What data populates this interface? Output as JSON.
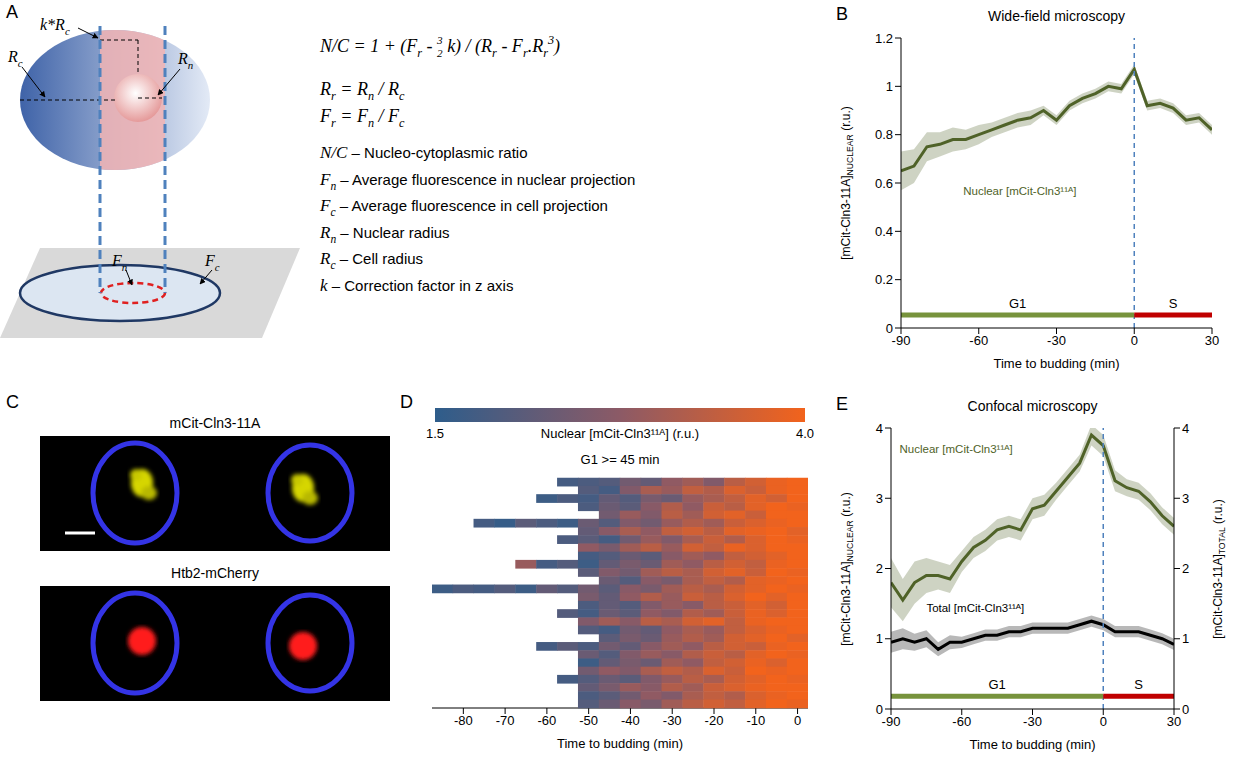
{
  "diagram": {
    "panel": "A",
    "labels": [
      [
        "k*R",
        {
          "sub": "c"
        }
      ],
      [
        "R",
        {
          "sub": "c"
        }
      ],
      [
        "R",
        {
          "sub": "n"
        }
      ],
      [
        "F",
        {
          "sub": "n"
        }
      ],
      [
        "F",
        {
          "sub": "c"
        }
      ]
    ],
    "formula": [
      [
        "N/C = 1 + (F",
        {
          "sub": "r"
        },
        " - ",
        {
          "frac": [
            "3",
            "2"
          ]
        },
        " k) / (R",
        {
          "sub": "r"
        },
        " - F",
        {
          "sub": "r"
        },
        ".R",
        {
          "sub": "r"
        },
        {
          "sup": "3"
        },
        ")"
      ],
      [
        "R",
        {
          "sub": "r"
        },
        " = R",
        {
          "sub": "n"
        },
        " / R",
        {
          "sub": "c"
        }
      ],
      [
        "F",
        {
          "sub": "r"
        },
        " = F",
        {
          "sub": "n"
        },
        " / F",
        {
          "sub": "c"
        }
      ]
    ],
    "definitions": [
      {
        "term": [
          "N/C"
        ],
        "text": "– Nucleo-cytoplasmic ratio"
      },
      {
        "term": [
          "F",
          {
            "sub": "n"
          }
        ],
        "text": "– Average fluorescence in nuclear projection"
      },
      {
        "term": [
          "F",
          {
            "sub": "c"
          }
        ],
        "text": "– Average fluorescence in cell projection"
      },
      {
        "term": [
          "R",
          {
            "sub": "n"
          }
        ],
        "text": "– Nuclear radius"
      },
      {
        "term": [
          "R",
          {
            "sub": "c"
          }
        ],
        "text": "– Cell radius"
      },
      {
        "term": [
          "k"
        ],
        "text": "– Correction factor in z axis"
      }
    ]
  },
  "images": {
    "panel": "C",
    "channels": [
      "mCit-Cln3-11A",
      "Htb2-mCherry"
    ]
  },
  "chart_data": [
    {
      "panel": "B",
      "type": "line",
      "title": "Wide-field microscopy",
      "xlabel": "Time to budding (min)",
      "ylabel": {
        "text": "[mCit-Cln3-11A]",
        "sub": "NUCLEAR",
        "suffix": " (r.u.)"
      },
      "x": [
        -90,
        -85,
        -80,
        -75,
        -70,
        -65,
        -60,
        -55,
        -50,
        -45,
        -40,
        -35,
        -30,
        -25,
        -20,
        -15,
        -10,
        -5,
        0,
        5,
        10,
        15,
        20,
        25,
        30
      ],
      "xlim": [
        -90,
        30
      ],
      "xticks": [
        -90,
        -60,
        -30,
        0,
        30
      ],
      "ylim": [
        0,
        1.2
      ],
      "yticks": [
        0,
        0.2,
        0.4,
        0.6,
        0.8,
        1,
        1.2
      ],
      "grid": false,
      "series": [
        {
          "name": "Nuclear [mCit-Cln3¹¹ᴬ]",
          "color": "#4f6228",
          "values": [
            0.65,
            0.67,
            0.75,
            0.76,
            0.78,
            0.78,
            0.8,
            0.82,
            0.84,
            0.86,
            0.87,
            0.9,
            0.86,
            0.92,
            0.95,
            0.97,
            1.0,
            0.99,
            1.07,
            0.92,
            0.93,
            0.91,
            0.86,
            0.87,
            0.82
          ],
          "error": [
            0.08,
            0.07,
            0.06,
            0.05,
            0.05,
            0.04,
            0.04,
            0.03,
            0.03,
            0.03,
            0.03,
            0.02,
            0.02,
            0.02,
            0.02,
            0.02,
            0.02,
            0.02,
            0.02,
            0.02,
            0.02,
            0.02,
            0.02,
            0.02,
            0.02
          ]
        }
      ],
      "vline": 0,
      "phases": [
        {
          "label": "G1",
          "start": -90,
          "end": 0,
          "color": "#77933c"
        },
        {
          "label": "S",
          "start": 0,
          "end": 30,
          "color": "#c00000"
        }
      ]
    },
    {
      "panel": "D",
      "type": "heatmap",
      "title": "G1 >= 45 min",
      "xlabel": "Time to budding (min)",
      "x": [
        -85,
        -80,
        -75,
        -70,
        -65,
        -60,
        -55,
        -50,
        -45,
        -40,
        -35,
        -30,
        -25,
        -20,
        -15,
        -10,
        -5,
        0
      ],
      "xlim": [
        -87.5,
        2.5
      ],
      "xticks": [
        -80,
        -70,
        -60,
        -50,
        -40,
        -30,
        -20,
        -10,
        0
      ],
      "tick_labels": "x",
      "colorbar": {
        "label": "Nuclear [mCit-Cln3¹¹ᴬ] (r.u.)",
        "range": [
          1.5,
          4
        ],
        "ticks": [
          1.5,
          {
            "value": 4,
            "label": "4.0"
          }
        ],
        "colors": [
          "#2e5d8b",
          "#8c5a66",
          "#f2631c"
        ]
      },
      "cells": [
        [
          null,
          null,
          null,
          null,
          null,
          null,
          1.8,
          1.9,
          2.0,
          2.4,
          2.2,
          2.8,
          3.0,
          2.6,
          3.3,
          3.6,
          3.9,
          4.0
        ],
        [
          null,
          null,
          null,
          null,
          null,
          null,
          null,
          2.0,
          1.8,
          2.6,
          3.1,
          2.9,
          3.4,
          3.2,
          3.7,
          3.5,
          3.9,
          4.0
        ],
        [
          null,
          null,
          null,
          null,
          null,
          1.7,
          1.9,
          1.8,
          2.2,
          2.0,
          2.5,
          2.3,
          2.9,
          3.1,
          3.4,
          3.8,
          3.6,
          4.0
        ],
        [
          null,
          null,
          null,
          null,
          null,
          null,
          null,
          1.9,
          2.3,
          2.1,
          2.7,
          3.2,
          2.8,
          3.5,
          3.3,
          3.8,
          4.0,
          3.9
        ],
        [
          null,
          null,
          null,
          null,
          null,
          null,
          null,
          null,
          2.4,
          2.9,
          2.6,
          3.3,
          3.0,
          3.6,
          3.8,
          3.5,
          4.0,
          4.0
        ],
        [
          null,
          null,
          1.8,
          1.6,
          2.1,
          1.9,
          1.7,
          2.3,
          2.0,
          2.6,
          2.4,
          2.9,
          3.2,
          3.0,
          3.5,
          3.7,
          3.9,
          4.0
        ],
        [
          null,
          null,
          null,
          null,
          null,
          null,
          null,
          2.2,
          2.7,
          3.1,
          2.8,
          3.4,
          3.6,
          3.3,
          3.8,
          3.9,
          4.0,
          3.8
        ],
        [
          null,
          null,
          null,
          null,
          null,
          null,
          1.9,
          2.1,
          1.8,
          2.4,
          2.9,
          2.6,
          3.1,
          3.5,
          3.2,
          3.7,
          4.0,
          3.9
        ],
        [
          null,
          null,
          null,
          null,
          null,
          null,
          null,
          2.8,
          2.5,
          3.0,
          3.3,
          2.9,
          3.6,
          3.4,
          3.9,
          3.7,
          4.0,
          4.0
        ],
        [
          null,
          null,
          null,
          null,
          null,
          null,
          null,
          1.8,
          2.0,
          2.3,
          2.1,
          2.7,
          3.0,
          2.8,
          3.4,
          3.6,
          3.8,
          4.0
        ],
        [
          null,
          null,
          null,
          null,
          2.9,
          1.8,
          2.0,
          1.7,
          2.2,
          2.5,
          2.3,
          3.0,
          2.8,
          3.3,
          3.6,
          3.4,
          3.9,
          4.0
        ],
        [
          null,
          null,
          null,
          null,
          null,
          null,
          null,
          2.1,
          2.6,
          2.4,
          3.0,
          3.3,
          3.1,
          3.6,
          3.8,
          3.5,
          4.0,
          3.9
        ],
        [
          null,
          null,
          null,
          null,
          null,
          null,
          null,
          null,
          2.3,
          2.0,
          2.7,
          2.5,
          3.1,
          3.4,
          3.2,
          3.8,
          3.9,
          4.0
        ],
        [
          1.7,
          1.9,
          1.8,
          2.0,
          1.7,
          2.2,
          2.0,
          2.4,
          2.1,
          2.7,
          2.5,
          3.0,
          3.3,
          3.1,
          3.6,
          3.8,
          4.0,
          3.9
        ],
        [
          null,
          null,
          null,
          null,
          null,
          null,
          null,
          2.5,
          2.2,
          2.8,
          3.2,
          2.9,
          3.5,
          3.3,
          3.7,
          4.0,
          3.8,
          4.0
        ],
        [
          null,
          null,
          null,
          null,
          null,
          null,
          null,
          1.9,
          2.2,
          2.0,
          2.6,
          2.9,
          2.7,
          3.3,
          3.5,
          3.8,
          3.6,
          4.0
        ],
        [
          null,
          null,
          null,
          null,
          null,
          null,
          2.0,
          1.8,
          2.3,
          2.1,
          2.8,
          2.6,
          3.2,
          3.0,
          3.5,
          3.9,
          3.7,
          4.0
        ],
        [
          null,
          null,
          null,
          null,
          null,
          null,
          null,
          2.6,
          3.0,
          2.7,
          3.3,
          3.1,
          3.6,
          3.8,
          3.4,
          3.9,
          4.0,
          4.0
        ],
        [
          null,
          null,
          null,
          null,
          null,
          null,
          null,
          2.0,
          1.8,
          2.4,
          2.2,
          2.8,
          3.1,
          2.9,
          3.4,
          3.7,
          3.9,
          4.0
        ],
        [
          null,
          null,
          null,
          null,
          null,
          null,
          null,
          null,
          2.1,
          2.5,
          2.3,
          2.9,
          3.2,
          3.0,
          3.6,
          3.8,
          4.0,
          3.8
        ],
        [
          null,
          null,
          null,
          null,
          null,
          1.8,
          2.1,
          1.9,
          2.4,
          2.2,
          2.7,
          3.0,
          2.8,
          3.3,
          3.6,
          3.5,
          3.9,
          4.0
        ],
        [
          null,
          null,
          null,
          null,
          null,
          null,
          null,
          2.3,
          2.0,
          2.6,
          2.9,
          2.7,
          3.2,
          3.5,
          3.3,
          3.8,
          4.0,
          3.9
        ],
        [
          null,
          null,
          null,
          null,
          null,
          null,
          null,
          1.7,
          2.2,
          2.5,
          2.3,
          3.0,
          2.8,
          3.4,
          3.6,
          3.9,
          3.7,
          4.0
        ],
        [
          null,
          null,
          null,
          null,
          null,
          null,
          null,
          2.4,
          2.8,
          2.6,
          3.1,
          3.4,
          3.2,
          3.7,
          3.5,
          4.0,
          3.9,
          4.0
        ],
        [
          null,
          null,
          null,
          null,
          null,
          null,
          1.8,
          2.0,
          2.3,
          2.1,
          2.6,
          2.9,
          3.3,
          3.1,
          3.6,
          3.8,
          4.0,
          3.9
        ],
        [
          null,
          null,
          null,
          null,
          null,
          null,
          null,
          2.2,
          2.5,
          2.9,
          2.7,
          3.2,
          3.0,
          3.5,
          3.7,
          3.9,
          4.0,
          4.0
        ],
        [
          null,
          null,
          null,
          null,
          null,
          null,
          null,
          1.9,
          2.1,
          2.4,
          2.8,
          2.6,
          3.1,
          3.4,
          3.2,
          3.7,
          3.9,
          4.0
        ],
        [
          null,
          null,
          null,
          null,
          null,
          null,
          null,
          2.0,
          2.3,
          2.7,
          2.5,
          3.0,
          3.3,
          3.6,
          3.4,
          3.8,
          4.0,
          3.9
        ]
      ]
    },
    {
      "panel": "E",
      "type": "line",
      "title": "Confocal microscopy",
      "xlabel": "Time to budding (min)",
      "ylabel": {
        "text": "[mCit-Cln3-11A]",
        "sub": "NUCLEAR",
        "suffix": " (r.u.)"
      },
      "y2label": {
        "text": "[mCit-Cln3-11A]",
        "sub": "TOTAL",
        "suffix": " (r.u.)"
      },
      "x": [
        -90,
        -85,
        -80,
        -75,
        -70,
        -65,
        -60,
        -55,
        -50,
        -45,
        -40,
        -35,
        -30,
        -25,
        -20,
        -15,
        -10,
        -5,
        0,
        5,
        10,
        15,
        20,
        25,
        30
      ],
      "xlim": [
        -90,
        30
      ],
      "xticks": [
        -90,
        -60,
        -30,
        0,
        30
      ],
      "ylim": [
        0,
        4
      ],
      "yticks": [
        0,
        1,
        2,
        3,
        4
      ],
      "y2lim": [
        0,
        4
      ],
      "y2ticks": [
        0,
        1,
        2,
        3,
        4
      ],
      "grid": false,
      "series": [
        {
          "name": "Nuclear [mCit-Cln3¹¹ᴬ]",
          "color": "#4f6228",
          "values": [
            1.8,
            1.55,
            1.8,
            1.9,
            1.9,
            1.85,
            2.1,
            2.3,
            2.4,
            2.55,
            2.6,
            2.55,
            2.85,
            2.9,
            3.1,
            3.3,
            3.5,
            3.9,
            3.75,
            3.25,
            3.15,
            3.1,
            2.95,
            2.75,
            2.6
          ],
          "error": [
            0.35,
            0.3,
            0.3,
            0.25,
            0.2,
            0.2,
            0.15,
            0.15,
            0.15,
            0.15,
            0.15,
            0.15,
            0.15,
            0.15,
            0.12,
            0.12,
            0.12,
            0.15,
            0.15,
            0.15,
            0.12,
            0.12,
            0.12,
            0.12,
            0.12
          ]
        },
        {
          "name": "Total [mCit-Cln3¹¹ᴬ]",
          "color": "#000000",
          "axis": "y2",
          "values": [
            0.95,
            1.0,
            0.95,
            1.0,
            0.85,
            0.95,
            0.95,
            1.0,
            1.05,
            1.05,
            1.1,
            1.1,
            1.15,
            1.15,
            1.15,
            1.15,
            1.2,
            1.25,
            1.2,
            1.1,
            1.1,
            1.1,
            1.05,
            1.0,
            0.92
          ],
          "error": [
            0.15,
            0.15,
            0.12,
            0.12,
            0.1,
            0.1,
            0.08,
            0.08,
            0.08,
            0.08,
            0.08,
            0.08,
            0.08,
            0.08,
            0.08,
            0.08,
            0.08,
            0.08,
            0.08,
            0.08,
            0.08,
            0.08,
            0.08,
            0.08,
            0.08
          ]
        }
      ],
      "vline": 0,
      "phases": [
        {
          "label": "G1",
          "start": -90,
          "end": 0,
          "color": "#77933c"
        },
        {
          "label": "S",
          "start": 0,
          "end": 30,
          "color": "#c00000"
        }
      ]
    }
  ]
}
